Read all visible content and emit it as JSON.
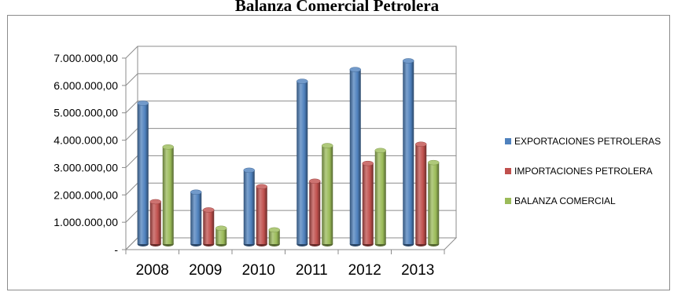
{
  "chart_data": {
    "type": "bar",
    "title": "Balanza Comercial Petrolera",
    "xlabel": "",
    "ylabel": "",
    "categories": [
      "2008",
      "2009",
      "2010",
      "2011",
      "2012",
      "2013"
    ],
    "y_ticks": [
      {
        "value": 0,
        "label": "-"
      },
      {
        "value": 1000000,
        "label": "1.000.000,00"
      },
      {
        "value": 2000000,
        "label": "2.000.000,00"
      },
      {
        "value": 3000000,
        "label": "3.000.000,00"
      },
      {
        "value": 4000000,
        "label": "4.000.000,00"
      },
      {
        "value": 5000000,
        "label": "5.000.000,00"
      },
      {
        "value": 6000000,
        "label": "6.000.000,00"
      },
      {
        "value": 7000000,
        "label": "7.000.000,00"
      }
    ],
    "ylim": [
      0,
      7000000
    ],
    "grid": true,
    "legend_position": "right",
    "series": [
      {
        "name": "EXPORTACIONES PETROLERAS",
        "color": "#4f81bd",
        "values": [
          5150000,
          1900000,
          2700000,
          5950000,
          6380000,
          6700000
        ]
      },
      {
        "name": "IMPORTACIONES PETROLERA",
        "color": "#c0504d",
        "values": [
          1550000,
          1250000,
          2100000,
          2300000,
          2950000,
          3650000
        ]
      },
      {
        "name": "BALANZA COMERCIAL",
        "color": "#9bbb59",
        "values": [
          3550000,
          580000,
          520000,
          3600000,
          3420000,
          2980000
        ]
      }
    ]
  }
}
